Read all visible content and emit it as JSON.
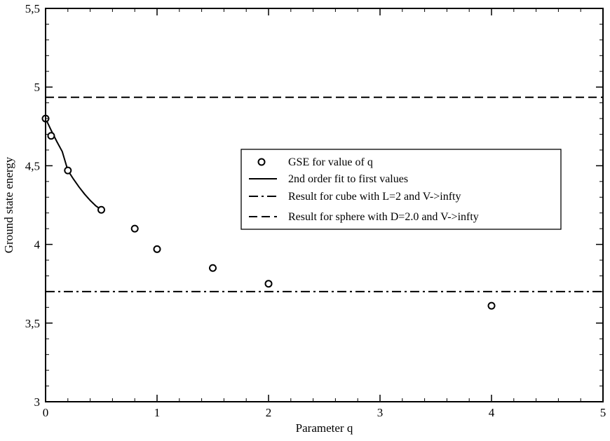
{
  "chart_data": {
    "type": "scatter",
    "xlabel": "Parameter q",
    "ylabel": "Ground state energy",
    "xlim": [
      0,
      5
    ],
    "ylim": [
      3,
      5.5
    ],
    "x_ticks": [
      "0",
      "1",
      "2",
      "3",
      "4",
      "5"
    ],
    "y_ticks": [
      "3",
      "3,5",
      "4",
      "4,5",
      "5",
      "5,5"
    ],
    "grid": false,
    "legend_position": "center-right",
    "series": [
      {
        "name": "GSE for value of q",
        "kind": "points",
        "x": [
          0,
          0.05,
          0.2,
          0.5,
          0.8,
          1.0,
          1.5,
          2.0,
          4.0
        ],
        "y": [
          4.8,
          4.69,
          4.47,
          4.22,
          4.1,
          3.97,
          3.85,
          3.75,
          3.61
        ]
      },
      {
        "name": "2nd order fit to first values",
        "kind": "line",
        "style": "solid",
        "x": [
          0,
          0.05,
          0.1,
          0.15,
          0.2,
          0.25,
          0.3,
          0.35,
          0.4,
          0.45,
          0.5
        ],
        "y": [
          4.8,
          4.725,
          4.655,
          4.59,
          4.47,
          4.415,
          4.365,
          4.32,
          4.28,
          4.245,
          4.22
        ]
      },
      {
        "name": "Result for cube with L=2 and V->infty",
        "kind": "hline",
        "style": "dashdot",
        "y": 3.7
      },
      {
        "name": "Result for sphere with D=2.0 and V->infty",
        "kind": "hline",
        "style": "dashed",
        "y": 4.935
      }
    ]
  }
}
